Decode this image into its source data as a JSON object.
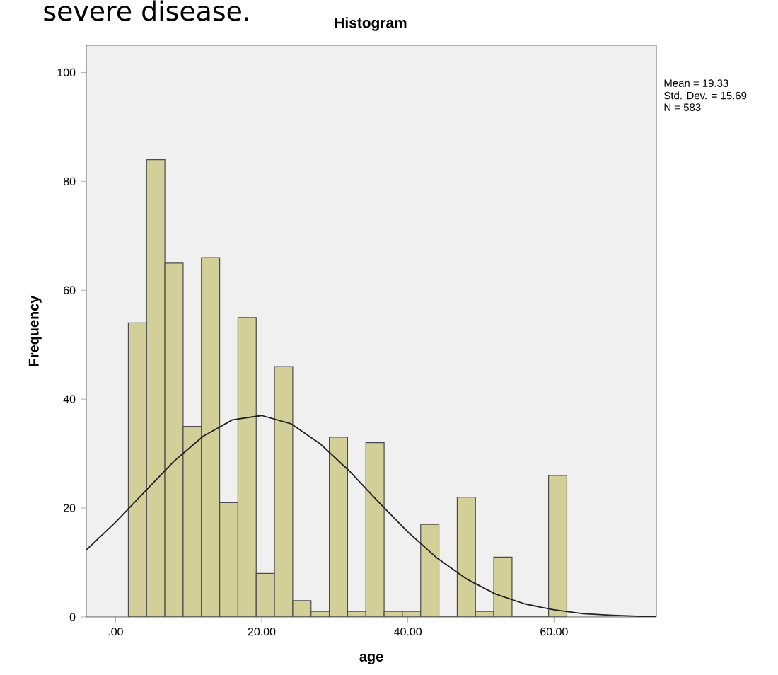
{
  "chart_data": {
    "type": "histogram",
    "title": "Histogram",
    "xlabel": "age",
    "ylabel": "Frequency",
    "bins": [
      1.75,
      4.25,
      6.75,
      9.25,
      11.75,
      14.25,
      16.75,
      19.25,
      21.75,
      24.25,
      26.75,
      29.25,
      31.75,
      34.25,
      36.75,
      39.25,
      41.75,
      44.25,
      46.75,
      49.25,
      51.75,
      54.25,
      56.75,
      59.25,
      61.75
    ],
    "series": [
      {
        "color": "#d3cf98",
        "values": [
          54,
          84,
          65,
          35,
          66,
          21,
          55,
          8,
          46,
          3,
          1,
          33,
          1,
          32,
          1,
          1,
          17,
          0,
          22,
          1,
          11,
          0,
          0,
          26
        ]
      },
      {
        "type": "line",
        "color": "#222222",
        "x": [
          -4,
          0,
          4,
          8,
          12,
          16,
          20,
          24,
          28,
          32,
          36,
          40,
          44,
          48,
          52,
          56,
          60,
          64,
          68,
          72,
          74
        ],
        "values": [
          12.3,
          17.4,
          23.0,
          28.6,
          33.2,
          36.2,
          37.0,
          35.5,
          31.8,
          26.8,
          21.1,
          15.6,
          10.8,
          7.0,
          4.2,
          2.4,
          1.3,
          0.6,
          0.3,
          0.1,
          0.1
        ]
      }
    ],
    "xlim": [
      -4,
      74
    ],
    "ylim": [
      0,
      105
    ],
    "xticks": [
      {
        "value": 0,
        "label": ".00"
      },
      {
        "value": 20,
        "label": "20.00"
      },
      {
        "value": 40,
        "label": "40.00"
      },
      {
        "value": 60,
        "label": "60.00"
      }
    ],
    "yticks": [
      0,
      20,
      40,
      60,
      80,
      100
    ],
    "annotations": [
      "severe disease.",
      "Mean = 19.33",
      "Std. Dev. = 15.69",
      "N = 583"
    ]
  }
}
